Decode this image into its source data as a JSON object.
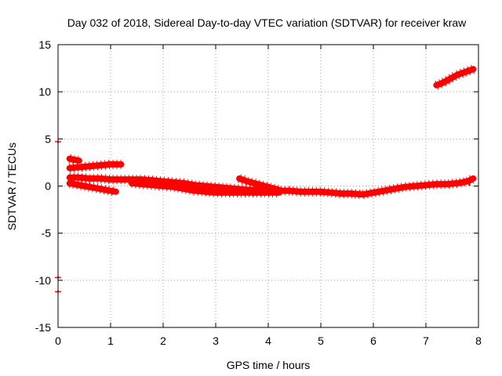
{
  "chart_data": {
    "type": "scatter",
    "title": "Day 032 of 2018, Sidereal Day-to-day VTEC variation (SDTVAR) for receiver kraw",
    "xlabel": "GPS time / hours",
    "ylabel": "SDTVAR / TECUs",
    "xlim": [
      0,
      8
    ],
    "ylim": [
      -15,
      15
    ],
    "xticks": [
      0,
      1,
      2,
      3,
      4,
      5,
      6,
      7,
      8
    ],
    "yticks": [
      -15,
      -10,
      -5,
      0,
      5,
      10,
      15
    ],
    "grid": true,
    "legend": "none",
    "color": "#ff0000",
    "series": [
      {
        "x": [
          0.22,
          0.3,
          0.4
        ],
        "y": [
          2.9,
          2.8,
          2.7
        ]
      },
      {
        "x": [
          0.22,
          0.4,
          0.6,
          0.8,
          1.0,
          1.2
        ],
        "y": [
          1.9,
          2.0,
          2.1,
          2.2,
          2.3,
          2.3
        ]
      },
      {
        "x": [
          0.22,
          0.4,
          0.6,
          0.8,
          1.0,
          1.1
        ],
        "y": [
          0.3,
          0.1,
          -0.1,
          -0.3,
          -0.5,
          -0.6
        ]
      },
      {
        "x": [
          0.22,
          0.4,
          0.6,
          0.8,
          1.0,
          1.2,
          1.4,
          1.6,
          1.8,
          2.0,
          2.2,
          2.4,
          2.6,
          2.8,
          3.0,
          3.2,
          3.4,
          3.6,
          3.8,
          4.0,
          4.2,
          4.4,
          4.6,
          4.8,
          5.0,
          5.2,
          5.4,
          5.6,
          5.8,
          6.0,
          6.2,
          6.4,
          6.6,
          6.8,
          7.0,
          7.2,
          7.4,
          7.6,
          7.8,
          7.9
        ],
        "y": [
          0.9,
          0.9,
          0.8,
          0.8,
          0.7,
          0.7,
          0.7,
          0.7,
          0.6,
          0.5,
          0.4,
          0.3,
          0.1,
          0.0,
          -0.1,
          -0.2,
          -0.3,
          -0.4,
          -0.4,
          -0.5,
          -0.5,
          -0.5,
          -0.6,
          -0.6,
          -0.6,
          -0.7,
          -0.8,
          -0.8,
          -0.9,
          -0.7,
          -0.5,
          -0.3,
          -0.1,
          0.0,
          0.1,
          0.2,
          0.2,
          0.3,
          0.5,
          0.8
        ]
      },
      {
        "x": [
          1.4,
          1.6,
          1.8,
          2.0,
          2.2,
          2.4,
          2.6,
          2.8,
          3.0,
          3.2,
          3.4,
          3.6,
          3.8,
          4.0,
          4.2
        ],
        "y": [
          0.3,
          0.2,
          0.1,
          0.0,
          -0.1,
          -0.3,
          -0.5,
          -0.6,
          -0.7,
          -0.7,
          -0.7,
          -0.7,
          -0.7,
          -0.7,
          -0.7
        ]
      },
      {
        "x": [
          3.45,
          3.6,
          3.8,
          4.0,
          4.2
        ],
        "y": [
          0.8,
          0.5,
          0.2,
          -0.1,
          -0.4
        ]
      },
      {
        "x": [
          7.2,
          7.3,
          7.4,
          7.5,
          7.6,
          7.7,
          7.8,
          7.9
        ],
        "y": [
          10.7,
          10.9,
          11.2,
          11.5,
          11.8,
          12.0,
          12.2,
          12.4
        ]
      },
      {
        "x": [
          0.0
        ],
        "y": [
          4.7
        ]
      },
      {
        "x": [
          0.0
        ],
        "y": [
          -9.7
        ]
      },
      {
        "x": [
          0.0
        ],
        "y": [
          -11.2
        ]
      }
    ]
  }
}
